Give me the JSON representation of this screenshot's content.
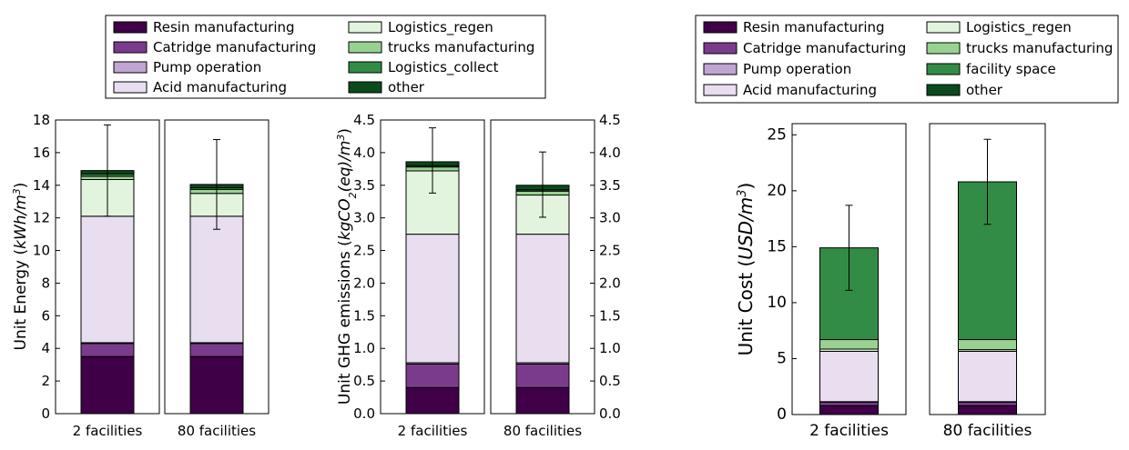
{
  "colors": {
    "resin": "#3f0047",
    "cartridge": "#7b3b8c",
    "pump": "#bfa6d2",
    "acid": "#e8def0",
    "logistics_regen": "#e2f4dd",
    "trucks": "#98d292",
    "green_dark": "#338c45",
    "other": "#0a4a1c"
  },
  "legend_left": {
    "col1": [
      "Resin manufacturing",
      "Catridge manufacturing",
      "Pump operation",
      "Acid manufacturing"
    ],
    "col2": [
      "Logistics_regen",
      "trucks manufacturing",
      "Logistics_collect",
      "other"
    ]
  },
  "legend_right": {
    "col1": [
      "Resin manufacturing",
      "Catridge manufacturing",
      "Pump operation",
      "Acid manufacturing"
    ],
    "col2": [
      "Logistics_regen",
      "trucks manufacturing",
      "facility space",
      "other"
    ]
  },
  "chart_data": [
    {
      "type": "bar",
      "stacked": true,
      "ylabel": "Unit Energy (kWh/m³)",
      "ylim": [
        0,
        18
      ],
      "yticks": [
        "0",
        "2",
        "4",
        "6",
        "8",
        "10",
        "12",
        "14",
        "16",
        "18"
      ],
      "categories": [
        "2 facilities",
        "80 facilities"
      ],
      "series": [
        {
          "name": "Resin manufacturing",
          "values": [
            3.5,
            3.5
          ]
        },
        {
          "name": "Catridge manufacturing",
          "values": [
            0.8,
            0.8
          ]
        },
        {
          "name": "Pump operation",
          "values": [
            0.05,
            0.05
          ]
        },
        {
          "name": "Acid manufacturing",
          "values": [
            7.75,
            7.75
          ]
        },
        {
          "name": "Logistics_regen",
          "values": [
            2.25,
            1.4
          ]
        },
        {
          "name": "trucks manufacturing",
          "values": [
            0.2,
            0.25
          ]
        },
        {
          "name": "Logistics_collect",
          "values": [
            0.15,
            0.1
          ]
        },
        {
          "name": "other",
          "values": [
            0.2,
            0.2
          ]
        }
      ],
      "error": [
        [
          12.1,
          17.7
        ],
        [
          11.3,
          16.8
        ]
      ]
    },
    {
      "type": "bar",
      "stacked": true,
      "ylabel": "Unit GHG emissions (kgCO₂(eq)/m³)",
      "ylim": [
        0,
        4.5
      ],
      "yticks": [
        "0.0",
        "0.5",
        "1.0",
        "1.5",
        "2.0",
        "2.5",
        "3.0",
        "3.5",
        "4.0",
        "4.5"
      ],
      "categories": [
        "2 facilities",
        "80 facilities"
      ],
      "series": [
        {
          "name": "Resin manufacturing",
          "values": [
            0.4,
            0.4
          ]
        },
        {
          "name": "Catridge manufacturing",
          "values": [
            0.36,
            0.36
          ]
        },
        {
          "name": "Pump operation",
          "values": [
            0.02,
            0.02
          ]
        },
        {
          "name": "Acid manufacturing",
          "values": [
            1.97,
            1.97
          ]
        },
        {
          "name": "Logistics_regen",
          "values": [
            0.97,
            0.6
          ]
        },
        {
          "name": "trucks manufacturing",
          "values": [
            0.06,
            0.06
          ]
        },
        {
          "name": "Logistics_collect",
          "values": [
            0.02,
            0.02
          ]
        },
        {
          "name": "other",
          "values": [
            0.06,
            0.07
          ]
        }
      ],
      "error": [
        [
          3.38,
          4.38
        ],
        [
          3.01,
          4.01
        ]
      ]
    },
    {
      "type": "bar",
      "stacked": true,
      "ylabel": "Unit Cost (USD/m³)",
      "ylim": [
        0,
        26
      ],
      "yticks": [
        "0",
        "5",
        "10",
        "15",
        "20",
        "25"
      ],
      "categories": [
        "2 facilities",
        "80 facilities"
      ],
      "series": [
        {
          "name": "Resin manufacturing",
          "values": [
            0.8,
            0.8
          ]
        },
        {
          "name": "Catridge manufacturing",
          "values": [
            0.3,
            0.3
          ]
        },
        {
          "name": "Pump operation",
          "values": [
            0.05,
            0.05
          ]
        },
        {
          "name": "Acid manufacturing",
          "values": [
            4.5,
            4.5
          ]
        },
        {
          "name": "Logistics_regen",
          "values": [
            0.2,
            0.15
          ]
        },
        {
          "name": "trucks manufacturing",
          "values": [
            0.85,
            0.9
          ]
        },
        {
          "name": "facility space",
          "values": [
            8.2,
            14.1
          ]
        },
        {
          "name": "other",
          "values": [
            0.0,
            0.0
          ]
        }
      ],
      "error": [
        [
          11.1,
          18.7
        ],
        [
          17.0,
          24.6
        ]
      ]
    }
  ]
}
